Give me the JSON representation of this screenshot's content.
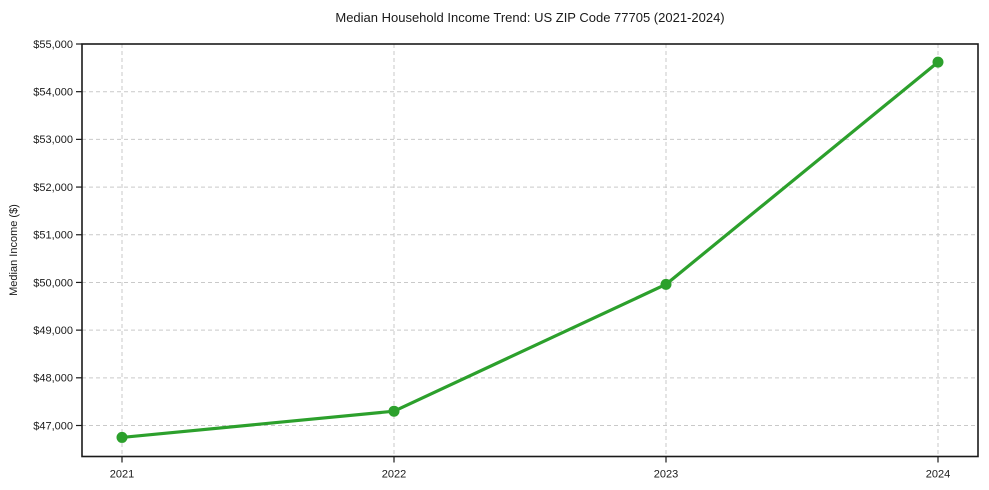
{
  "chart_data": {
    "type": "line",
    "title": "Median Household Income Trend: US ZIP Code 77705 (2021-2024)",
    "xlabel": "",
    "ylabel": "Median Income ($)",
    "categories": [
      "2021",
      "2022",
      "2023",
      "2024"
    ],
    "series": [
      {
        "name": "Median household income",
        "values": [
          46750,
          47300,
          49960,
          54620
        ],
        "color": "#2ca02c",
        "marker": "circle"
      }
    ],
    "ylim": [
      46350,
      55000
    ],
    "yticks": [
      47000,
      48000,
      49000,
      50000,
      51000,
      52000,
      53000,
      54000,
      55000
    ],
    "ytick_labels": [
      "$47,000",
      "$48,000",
      "$49,000",
      "$50,000",
      "$51,000",
      "$52,000",
      "$53,000",
      "$54,000",
      "$55,000"
    ],
    "grid": "dashed-both",
    "legend": "none",
    "colors": {
      "line": "#2ca02c",
      "grid": "#c9c9c9",
      "spine": "#1a1a1a",
      "text": "#1a1a1a",
      "background": "#ffffff"
    }
  }
}
